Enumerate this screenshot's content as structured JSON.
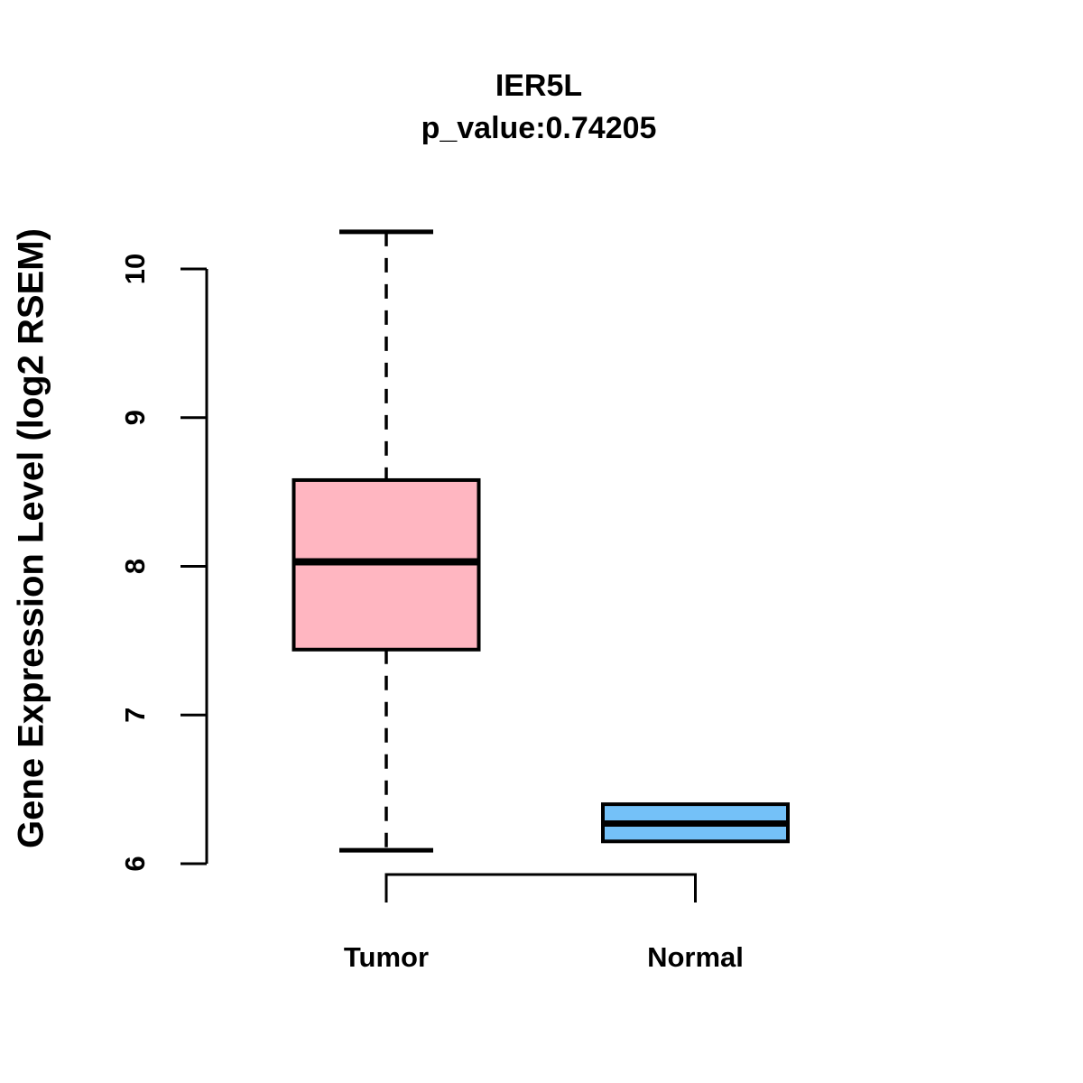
{
  "chart_data": {
    "type": "boxplot",
    "title": "IER5L",
    "subtitle": "p_value:0.74205",
    "ylabel": "Gene Expression Level (log2 RSEM)",
    "xlabel": "",
    "ylim": [
      6,
      10.4
    ],
    "yticks": [
      "6",
      "7",
      "8",
      "9",
      "10"
    ],
    "ytick_values": [
      6,
      7,
      8,
      9,
      10
    ],
    "grid": false,
    "legend": false,
    "background_color": "#ffffff",
    "axis_color": "#000000",
    "text_color": "#000000",
    "categories": [
      "Tumor",
      "Normal"
    ],
    "series": [
      {
        "name": "Tumor",
        "fill_color": "#ffb6c1",
        "border_color": "#000000",
        "whisker_low": 6.09,
        "q1": 7.44,
        "median": 8.03,
        "q3": 8.58,
        "whisker_high": 10.25,
        "whisker_style": "dashed"
      },
      {
        "name": "Normal",
        "fill_color": "#74c1f8",
        "border_color": "#000000",
        "whisker_low": 6.15,
        "q1": 6.15,
        "median": 6.27,
        "q3": 6.4,
        "whisker_high": 6.4,
        "whisker_style": "dashed"
      }
    ],
    "comparison_bracket": {
      "present": true,
      "connects": [
        "Tumor",
        "Normal"
      ]
    }
  }
}
